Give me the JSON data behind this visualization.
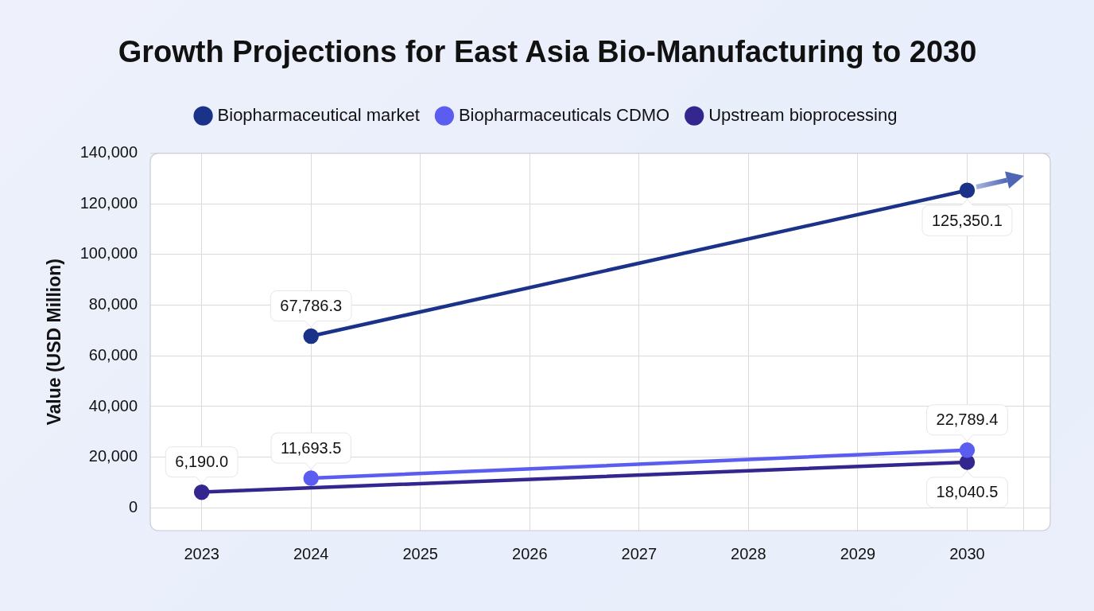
{
  "chart_data": {
    "type": "line",
    "title": "Growth Projections for East Asia Bio-Manufacturing to 2030",
    "ylabel": "Value (USD Million)",
    "xlim": [
      2022.53,
      2030.76
    ],
    "xticks": [
      2023,
      2024,
      2025,
      2026,
      2027,
      2028,
      2029,
      2030,
      {
        "value": 2030.52,
        "label": null
      }
    ],
    "ylim": [
      -9000,
      140000
    ],
    "yticks": [
      {
        "value": 0,
        "label": "0"
      },
      {
        "value": 20000,
        "label": "20,000"
      },
      {
        "value": 40000,
        "label": "40,000"
      },
      {
        "value": 60000,
        "label": "60,000"
      },
      {
        "value": 80000,
        "label": "80,000"
      },
      {
        "value": 100000,
        "label": "100,000"
      },
      {
        "value": 120000,
        "label": "120,000"
      },
      {
        "value": 140000,
        "label": "140,000"
      }
    ],
    "grid": true,
    "legend": "top",
    "marker": "circle",
    "line_style": "solid",
    "series": [
      {
        "name": "Biopharmaceutical market",
        "color": "#1a3288",
        "x": [
          2024,
          2030
        ],
        "values": [
          67786.3,
          125350.1
        ],
        "value_labels": [
          "67,786.3",
          "125,350.1"
        ]
      },
      {
        "name": "Biopharmaceuticals CDMO",
        "color": "#5b5cf0",
        "x": [
          2024,
          2030
        ],
        "values": [
          11693.5,
          22789.4
        ],
        "value_labels": [
          "11,693.5",
          "22,789.4"
        ]
      },
      {
        "name": "Upstream bioprocessing",
        "color": "#33278f",
        "x": [
          2023,
          2030
        ],
        "values": [
          6190.0,
          18040.5
        ],
        "value_labels": [
          "6,190.0",
          "18,040.5"
        ]
      }
    ]
  }
}
